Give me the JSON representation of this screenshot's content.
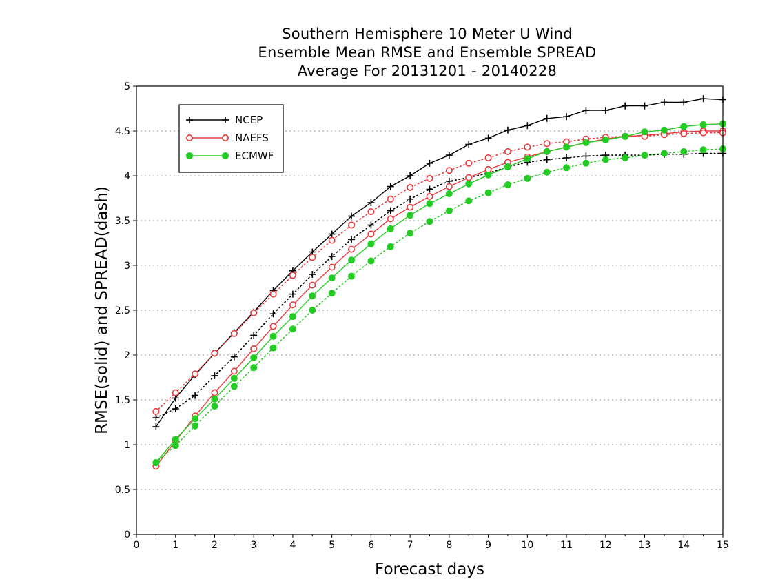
{
  "chart_data": {
    "type": "line",
    "title": [
      "Southern Hemisphere 10 Meter U Wind",
      "Ensemble Mean RMSE and Ensemble SPREAD",
      "Average For 20131201 - 20140228"
    ],
    "xlabel": "Forecast days",
    "ylabel": "RMSE(solid) and SPREAD(dash)",
    "xlim": [
      0,
      15
    ],
    "ylim": [
      0,
      5
    ],
    "x_ticks": [
      "0",
      "1",
      "2",
      "3",
      "4",
      "5",
      "6",
      "7",
      "8",
      "9",
      "10",
      "11",
      "12",
      "13",
      "14",
      "15"
    ],
    "y_ticks": [
      "0",
      "0.5",
      "1",
      "1.5",
      "2",
      "2.5",
      "3",
      "3.5",
      "4",
      "4.5",
      "5"
    ],
    "grid": "horizontal dotted",
    "legend_position": "top-left",
    "x": [
      0.5,
      1,
      1.5,
      2,
      2.5,
      3,
      3.5,
      4,
      4.5,
      5,
      5.5,
      6,
      6.5,
      7,
      7.5,
      8,
      8.5,
      9,
      9.5,
      10,
      10.5,
      11,
      11.5,
      12,
      12.5,
      13,
      13.5,
      14,
      14.5,
      15
    ],
    "series": [
      {
        "name": "NCEP",
        "color": "#000000",
        "marker": "plus",
        "rmse": [
          1.2,
          1.52,
          1.78,
          2.02,
          2.25,
          2.48,
          2.72,
          2.94,
          3.15,
          3.35,
          3.55,
          3.7,
          3.88,
          4.0,
          4.14,
          4.23,
          4.35,
          4.42,
          4.51,
          4.56,
          4.64,
          4.66,
          4.73,
          4.73,
          4.78,
          4.78,
          4.82,
          4.82,
          4.86,
          4.85
        ],
        "spread": [
          1.3,
          1.4,
          1.55,
          1.77,
          1.98,
          2.22,
          2.46,
          2.68,
          2.9,
          3.1,
          3.29,
          3.45,
          3.61,
          3.74,
          3.85,
          3.94,
          3.98,
          4.03,
          4.1,
          4.15,
          4.18,
          4.2,
          4.22,
          4.23,
          4.23,
          4.23,
          4.24,
          4.24,
          4.25,
          4.25
        ]
      },
      {
        "name": "NAEFS",
        "color": "#e8383c",
        "marker": "circle-open",
        "rmse": [
          0.76,
          1.04,
          1.32,
          1.58,
          1.82,
          2.07,
          2.32,
          2.56,
          2.78,
          2.98,
          3.18,
          3.35,
          3.52,
          3.65,
          3.77,
          3.88,
          3.98,
          4.07,
          4.15,
          4.21,
          4.27,
          4.32,
          4.37,
          4.41,
          4.44,
          4.45,
          4.47,
          4.49,
          4.5,
          4.5
        ],
        "spread": [
          1.37,
          1.58,
          1.79,
          2.02,
          2.24,
          2.47,
          2.68,
          2.89,
          3.09,
          3.28,
          3.45,
          3.6,
          3.74,
          3.87,
          3.97,
          4.06,
          4.14,
          4.2,
          4.27,
          4.32,
          4.36,
          4.38,
          4.41,
          4.43,
          4.44,
          4.44,
          4.46,
          4.47,
          4.48,
          4.48
        ]
      },
      {
        "name": "ECMWF",
        "color": "#22cc22",
        "marker": "circle-filled",
        "rmse": [
          0.8,
          1.06,
          1.29,
          1.51,
          1.74,
          1.97,
          2.21,
          2.43,
          2.66,
          2.86,
          3.06,
          3.24,
          3.41,
          3.56,
          3.69,
          3.8,
          3.91,
          4.01,
          4.1,
          4.19,
          4.27,
          4.32,
          4.37,
          4.4,
          4.44,
          4.49,
          4.51,
          4.55,
          4.57,
          4.58
        ],
        "spread": [
          0.8,
          0.99,
          1.21,
          1.43,
          1.65,
          1.86,
          2.08,
          2.29,
          2.5,
          2.69,
          2.88,
          3.05,
          3.21,
          3.36,
          3.49,
          3.61,
          3.72,
          3.81,
          3.9,
          3.97,
          4.04,
          4.09,
          4.14,
          4.18,
          4.2,
          4.23,
          4.25,
          4.27,
          4.29,
          4.3
        ]
      }
    ]
  }
}
